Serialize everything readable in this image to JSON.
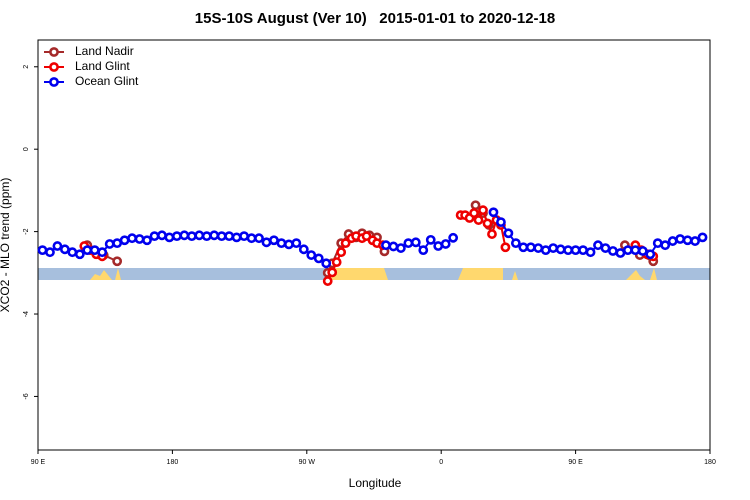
{
  "chart_data": {
    "type": "line",
    "title": "15S-10S August (Ver 10)   2015-01-01 to 2020-12-18",
    "xlabel": "Longitude",
    "ylabel": "XCO2 - MLO trend (ppm)",
    "xlim": [
      90,
      540
    ],
    "ylim": [
      -7.3,
      2.65
    ],
    "xticks": [
      {
        "value": 90,
        "label": "90 E"
      },
      180,
      {
        "value": 270,
        "label": "90 W"
      },
      {
        "value": 360,
        "label": "0"
      },
      {
        "value": 450,
        "label": "90 E"
      },
      {
        "value": 540,
        "label": "180"
      }
    ],
    "yticks": [
      -6,
      -4,
      -2,
      0,
      2
    ],
    "legend": "top-left",
    "series": [
      {
        "name": "Land Nadir",
        "color": "#a52a2a",
        "x": [
          123,
          134,
          143,
          null,
          284,
          287,
          293,
          298,
          303,
          307,
          312,
          317,
          322,
          null,
          383,
          388,
          392,
          null,
          483,
          493,
          502
        ],
        "values": [
          -2.33,
          -2.57,
          -2.72,
          null,
          -3.0,
          -2.77,
          -2.28,
          -2.06,
          -2.14,
          -2.04,
          -2.09,
          -2.14,
          -2.48,
          null,
          -1.36,
          -1.55,
          -1.84,
          null,
          -2.33,
          -2.57,
          -2.72
        ]
      },
      {
        "name": "Land Glint",
        "color": "#ee0000",
        "x": [
          121,
          125,
          129,
          133,
          null,
          284,
          287,
          290,
          293,
          296,
          300,
          303,
          307,
          310,
          314,
          317,
          321,
          null,
          373,
          376,
          379,
          382,
          385,
          388,
          391,
          394,
          397,
          400,
          403,
          null,
          490,
          494,
          498,
          502
        ],
        "values": [
          -2.35,
          -2.45,
          -2.55,
          -2.6,
          null,
          -3.2,
          -2.99,
          -2.74,
          -2.5,
          -2.28,
          -2.16,
          -2.11,
          -2.16,
          -2.11,
          -2.21,
          -2.28,
          -2.33,
          null,
          -1.6,
          -1.6,
          -1.67,
          -1.55,
          -1.72,
          -1.48,
          -1.8,
          -2.06,
          -1.72,
          -1.84,
          -2.38,
          null,
          -2.33,
          -2.45,
          -2.55,
          -2.6
        ]
      },
      {
        "name": "Ocean Glint",
        "color": "#0000ee",
        "x": [
          93,
          98,
          103,
          108,
          113,
          118,
          123,
          128,
          133,
          138,
          143,
          148,
          153,
          158,
          163,
          168,
          173,
          178,
          183,
          188,
          193,
          198,
          203,
          208,
          213,
          218,
          223,
          228,
          233,
          238,
          243,
          248,
          253,
          258,
          263,
          268,
          273,
          278,
          283,
          null,
          323,
          328,
          333,
          338,
          343,
          348,
          353,
          358,
          363,
          368,
          null,
          395,
          400,
          405,
          410,
          415,
          420,
          425,
          430,
          435,
          440,
          445,
          450,
          455,
          460,
          465,
          470,
          475,
          480,
          485,
          490,
          495,
          500,
          505,
          510,
          515,
          520,
          525,
          530,
          535
        ],
        "values": [
          -2.45,
          -2.5,
          -2.35,
          -2.43,
          -2.5,
          -2.55,
          -2.45,
          -2.45,
          -2.5,
          -2.3,
          -2.28,
          -2.21,
          -2.16,
          -2.18,
          -2.21,
          -2.11,
          -2.09,
          -2.14,
          -2.11,
          -2.09,
          -2.11,
          -2.09,
          -2.11,
          -2.09,
          -2.11,
          -2.11,
          -2.14,
          -2.11,
          -2.16,
          -2.16,
          -2.26,
          -2.21,
          -2.28,
          -2.31,
          -2.28,
          -2.43,
          -2.57,
          -2.65,
          -2.77,
          null,
          -2.33,
          -2.36,
          -2.4,
          -2.28,
          -2.26,
          -2.45,
          -2.2,
          -2.35,
          -2.3,
          -2.15,
          null,
          -1.53,
          -1.77,
          -2.04,
          -2.28,
          -2.38,
          -2.38,
          -2.4,
          -2.45,
          -2.4,
          -2.43,
          -2.45,
          -2.45,
          -2.45,
          -2.5,
          -2.33,
          -2.4,
          -2.47,
          -2.52,
          -2.45,
          -2.45,
          -2.47,
          -2.55,
          -2.28,
          -2.33,
          -2.23,
          -2.18,
          -2.21,
          -2.23,
          -2.14
        ]
      }
    ]
  }
}
